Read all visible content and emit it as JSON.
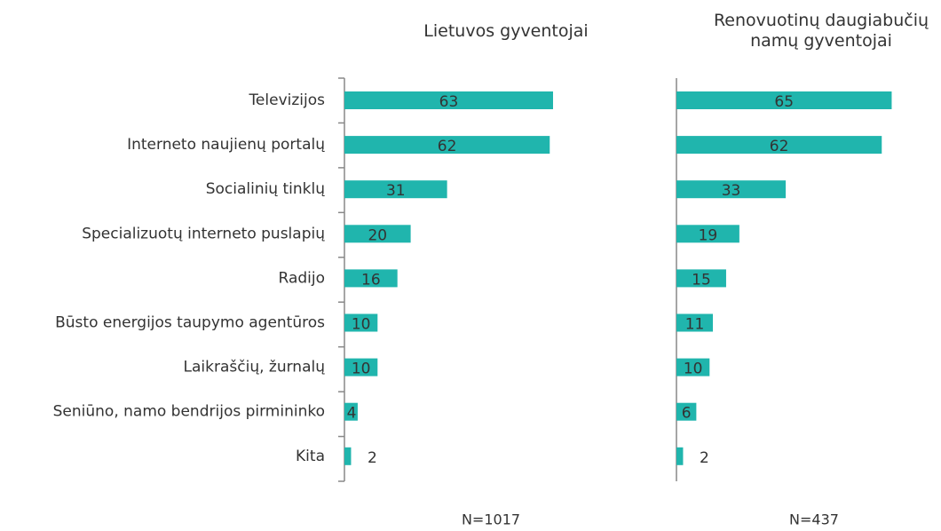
{
  "chart_data": {
    "type": "bar",
    "orientation": "horizontal",
    "color": "#20b5ad",
    "categories": [
      "Televizijos",
      "Interneto naujienų portalų",
      "Socialinių tinklų",
      "Specializuotų interneto puslapių",
      "Radijo",
      "Būsto energijos taupymo agentūros",
      "Laikraščių, žurnalų",
      "Seniūno, namo bendrijos pirmininko",
      "Kita"
    ],
    "panels": [
      {
        "title": "Lietuvos gyventojai",
        "note": "N=1017",
        "values": [
          63,
          62,
          31,
          20,
          16,
          10,
          10,
          4,
          2
        ]
      },
      {
        "title": "Renovuotinų daugiabučių namų gyventojai",
        "note": "N=437",
        "values": [
          65,
          62,
          33,
          19,
          15,
          11,
          10,
          6,
          2
        ]
      }
    ]
  }
}
